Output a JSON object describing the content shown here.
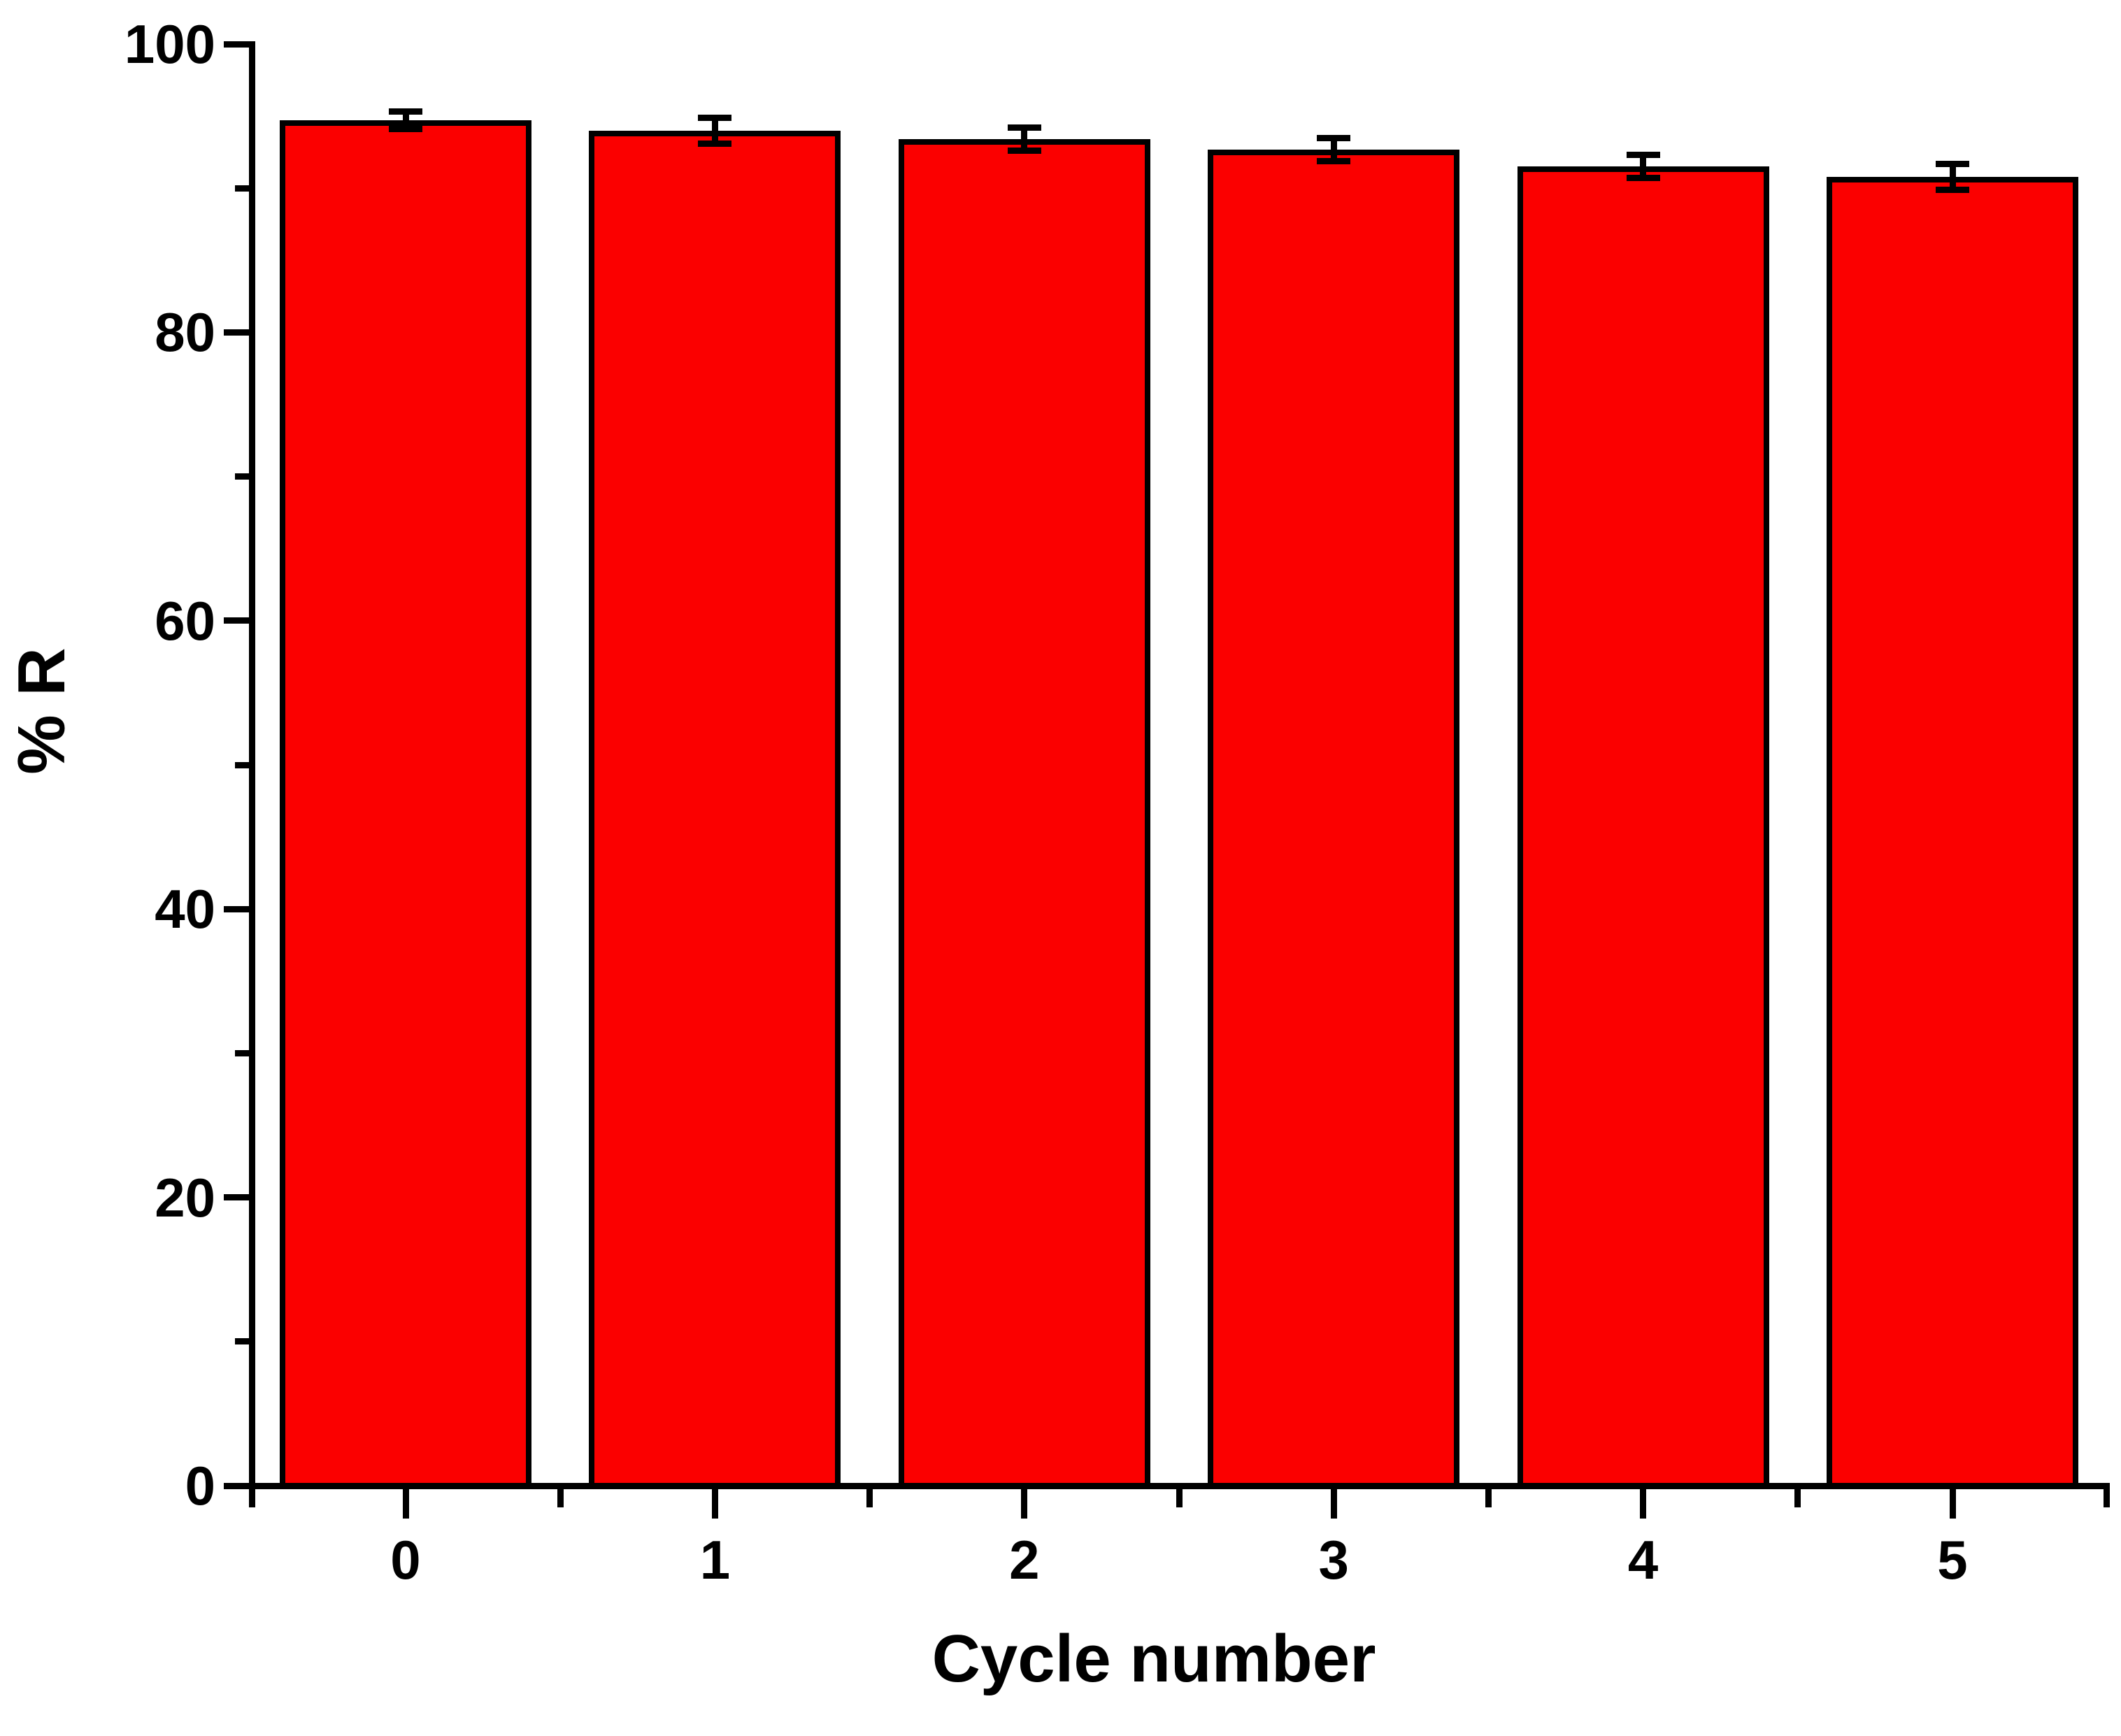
{
  "figure": {
    "background": "#ffffff"
  },
  "chart_data": {
    "type": "bar",
    "title": "",
    "xlabel": "Cycle number",
    "ylabel": "% R",
    "categories": [
      "0",
      "1",
      "2",
      "3",
      "4",
      "5"
    ],
    "values": [
      94.7,
      94.0,
      93.4,
      92.7,
      91.5,
      90.8
    ],
    "error_bars": [
      0.6,
      0.9,
      0.8,
      0.8,
      0.8,
      0.9
    ],
    "ylim": [
      0,
      100
    ],
    "y_ticks_major": [
      0,
      20,
      40,
      60,
      80,
      100
    ],
    "y_tick_labels": [
      "0",
      "20",
      "40",
      "60",
      "80",
      "100"
    ],
    "y_ticks_minor": [
      10,
      30,
      50,
      70,
      90
    ],
    "grid": "off",
    "legend": "none",
    "bar_fill_color": "#fb0000",
    "bar_edge_color": "#000000",
    "axis_color": "#000000",
    "error_bar_color": "#000000"
  }
}
